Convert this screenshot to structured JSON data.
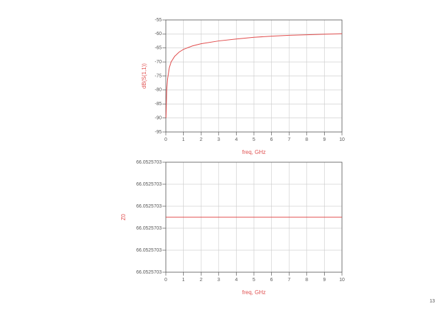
{
  "chart_data": [
    {
      "type": "line",
      "xlabel": "freq, GHz",
      "ylabel": "dB(S(1,1))",
      "x": [
        0.01,
        0.05,
        0.1,
        0.2,
        0.3,
        0.5,
        0.75,
        1,
        1.5,
        2,
        3,
        4,
        5,
        6,
        7,
        8,
        9,
        10
      ],
      "series": [
        {
          "color": "#e04848",
          "values": [
            -90,
            -80,
            -76,
            -72,
            -70,
            -68,
            -66.5,
            -65.5,
            -64.3,
            -63.5,
            -62.5,
            -61.8,
            -61.2,
            -60.8,
            -60.5,
            -60.3,
            -60.1,
            -59.9
          ]
        }
      ],
      "xlim": [
        0,
        10
      ],
      "xticks": [
        0,
        1,
        2,
        3,
        4,
        5,
        6,
        7,
        8,
        9,
        10
      ],
      "ylim": [
        -95,
        -55
      ],
      "yticks": [
        -95,
        -90,
        -85,
        -80,
        -75,
        -70,
        -65,
        -60,
        -55
      ],
      "grid": true
    },
    {
      "type": "line",
      "xlabel": "freq, GHz",
      "ylabel": "Z0",
      "x": [
        0,
        10
      ],
      "series": [
        {
          "color": "#e04848",
          "values": [
            66.0525702975,
            66.0525702975
          ]
        }
      ],
      "xlim": [
        0,
        10
      ],
      "xticks": [
        0,
        1,
        2,
        3,
        4,
        5,
        6,
        7,
        8,
        9,
        10
      ],
      "ylim": [
        66.05257026,
        66.052570335
      ],
      "yticks": [
        {
          "value": 66.05257026,
          "label": "66.0525703"
        },
        {
          "value": 66.052570275,
          "label": "66.0525703"
        },
        {
          "value": 66.05257029,
          "label": "66.0525703"
        },
        {
          "value": 66.052570305,
          "label": "66.0525703"
        },
        {
          "value": 66.05257032,
          "label": "66.0525703"
        },
        {
          "value": 66.052570335,
          "label": "66.0525703"
        }
      ],
      "grid": true
    }
  ],
  "page_number": "13"
}
